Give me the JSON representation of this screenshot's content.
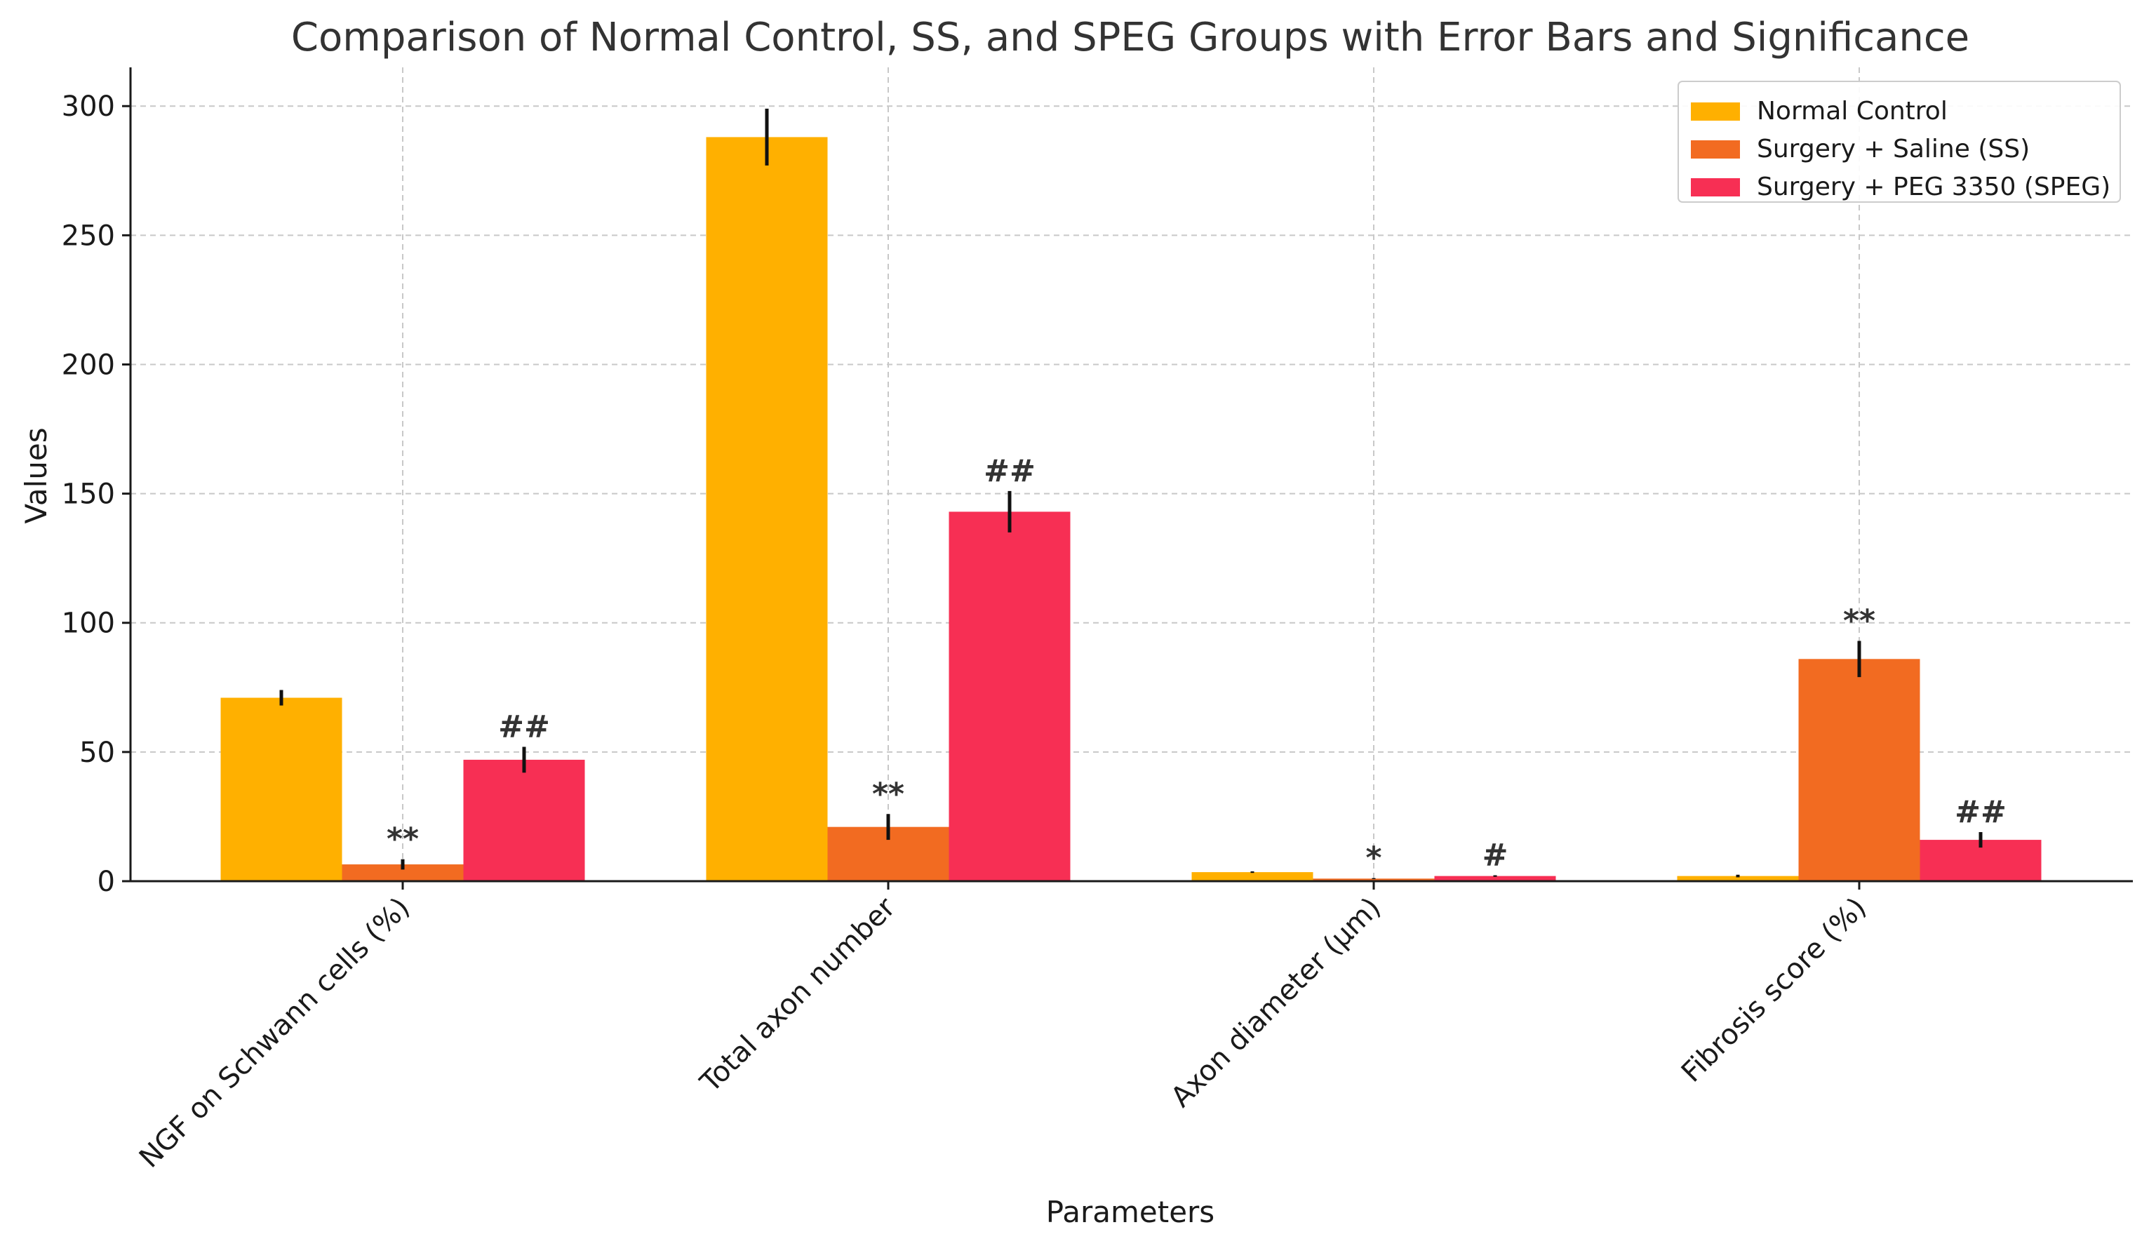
{
  "chart_data": {
    "type": "bar",
    "title": "Comparison of Normal Control, SS, and SPEG Groups with Error Bars and Significance",
    "xlabel": "Parameters",
    "ylabel": "Values",
    "ylim": [
      0,
      315
    ],
    "yticks": [
      0,
      50,
      100,
      150,
      200,
      250,
      300
    ],
    "grid": true,
    "legend_position": "top-right",
    "categories": [
      "NGF on Schwann cells (%)",
      "Total axon number",
      "Axon diameter (µm)",
      "Fibrosis score (%)"
    ],
    "series": [
      {
        "name": "Normal Control",
        "color": "#FFB000",
        "values": [
          71,
          288,
          3.5,
          2
        ],
        "errors": [
          3,
          11,
          0.3,
          0.5
        ],
        "significance": [
          "",
          "",
          "",
          ""
        ]
      },
      {
        "name": "Surgery + Saline (SS)",
        "color": "#F26B21",
        "values": [
          6.5,
          21,
          1,
          86
        ],
        "errors": [
          2,
          5,
          0.2,
          7
        ],
        "significance": [
          "**",
          "**",
          "*",
          "**"
        ]
      },
      {
        "name": "Surgery + PEG 3350 (SPEG)",
        "color": "#F72F54",
        "values": [
          47,
          143,
          2,
          16
        ],
        "errors": [
          5,
          8,
          0.3,
          3
        ],
        "significance": [
          "##",
          "##",
          "#",
          "##"
        ]
      }
    ]
  }
}
